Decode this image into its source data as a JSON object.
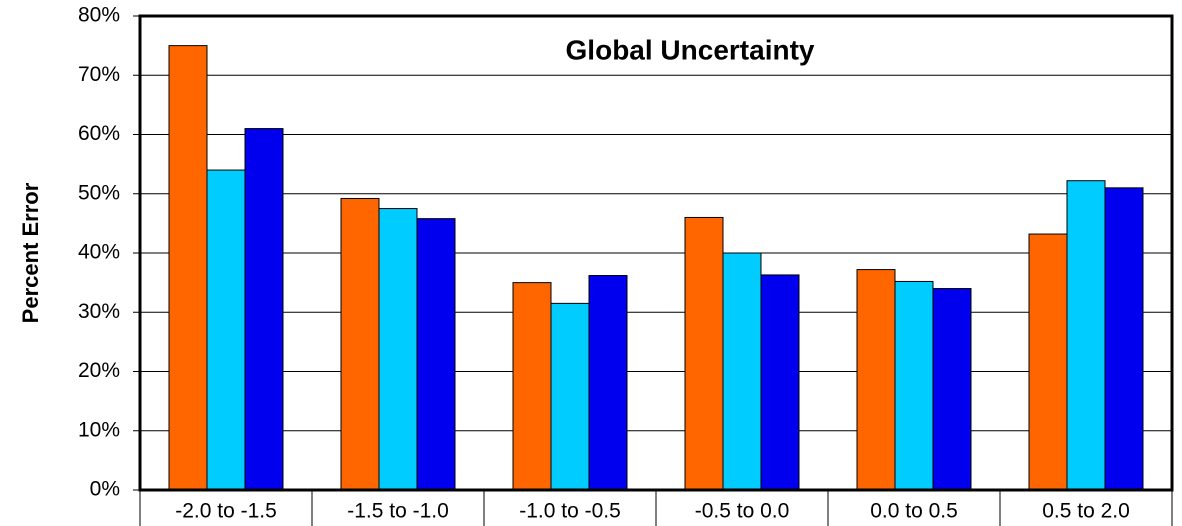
{
  "chart_data": {
    "type": "bar",
    "title": "Global Uncertainty",
    "y_label": "Percent Error",
    "categories": [
      "-2.0 to -1.5",
      "-1.5 to -1.0",
      "-1.0 to -0.5",
      "-0.5 to 0.0",
      "0.0 to 0.5",
      "0.5 to 2.0"
    ],
    "series": [
      {
        "color": "#ff6600",
        "values": [
          75,
          49.2,
          35,
          46,
          37.2,
          43.2
        ]
      },
      {
        "color": "#00ccff",
        "values": [
          54,
          47.5,
          31.5,
          40,
          35.2,
          52.2
        ]
      },
      {
        "color": "#0000ee",
        "values": [
          61,
          45.8,
          36.2,
          36.3,
          34,
          51
        ]
      }
    ],
    "ylim": [
      0,
      80
    ],
    "yticks": [
      {
        "value": 0,
        "label": "0%"
      },
      {
        "value": 10,
        "label": "10%"
      },
      {
        "value": 20,
        "label": "20%"
      },
      {
        "value": 30,
        "label": "30%"
      },
      {
        "value": 40,
        "label": "40%"
      },
      {
        "value": 50,
        "label": "50%"
      },
      {
        "value": 60,
        "label": "60%"
      },
      {
        "value": 70,
        "label": "70%"
      },
      {
        "value": 80,
        "label": "80%"
      }
    ],
    "grid": true
  }
}
